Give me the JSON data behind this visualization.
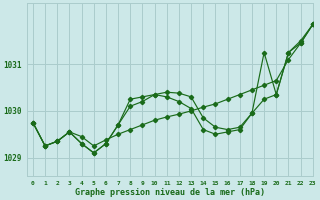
{
  "xlabel": "Graphe pression niveau de la mer (hPa)",
  "bg_color": "#cce8e8",
  "grid_color": "#aacccc",
  "line_color": "#1a6b1a",
  "xlim": [
    -0.5,
    23
  ],
  "ylim": [
    1028.6,
    1032.3
  ],
  "yticks": [
    1029,
    1030,
    1031
  ],
  "xticks": [
    0,
    1,
    2,
    3,
    4,
    5,
    6,
    7,
    8,
    9,
    10,
    11,
    12,
    13,
    14,
    15,
    16,
    17,
    18,
    19,
    20,
    21,
    22,
    23
  ],
  "series": [
    [
      1029.75,
      1029.25,
      1029.35,
      1029.55,
      1029.45,
      1029.25,
      1029.38,
      1029.5,
      1029.6,
      1029.7,
      1029.8,
      1029.87,
      1029.93,
      1030.0,
      1030.08,
      1030.15,
      1030.25,
      1030.35,
      1030.45,
      1030.55,
      1030.65,
      1031.1,
      1031.45,
      1031.85
    ],
    [
      1029.75,
      1029.25,
      1029.35,
      1029.55,
      1029.3,
      1029.1,
      1029.3,
      1029.7,
      1030.25,
      1030.3,
      1030.35,
      1030.3,
      1030.2,
      1030.05,
      1029.6,
      1029.5,
      1029.55,
      1029.6,
      1029.95,
      1030.25,
      1030.35,
      1031.25,
      1031.45,
      1031.85
    ],
    [
      1029.75,
      1029.25,
      1029.35,
      1029.55,
      1029.3,
      1029.1,
      1029.3,
      1029.7,
      1030.1,
      1030.2,
      1030.35,
      1030.4,
      1030.38,
      1030.3,
      1029.85,
      1029.65,
      1029.6,
      1029.65,
      1029.95,
      1031.25,
      1030.35,
      1031.25,
      1031.5,
      1031.85
    ]
  ]
}
